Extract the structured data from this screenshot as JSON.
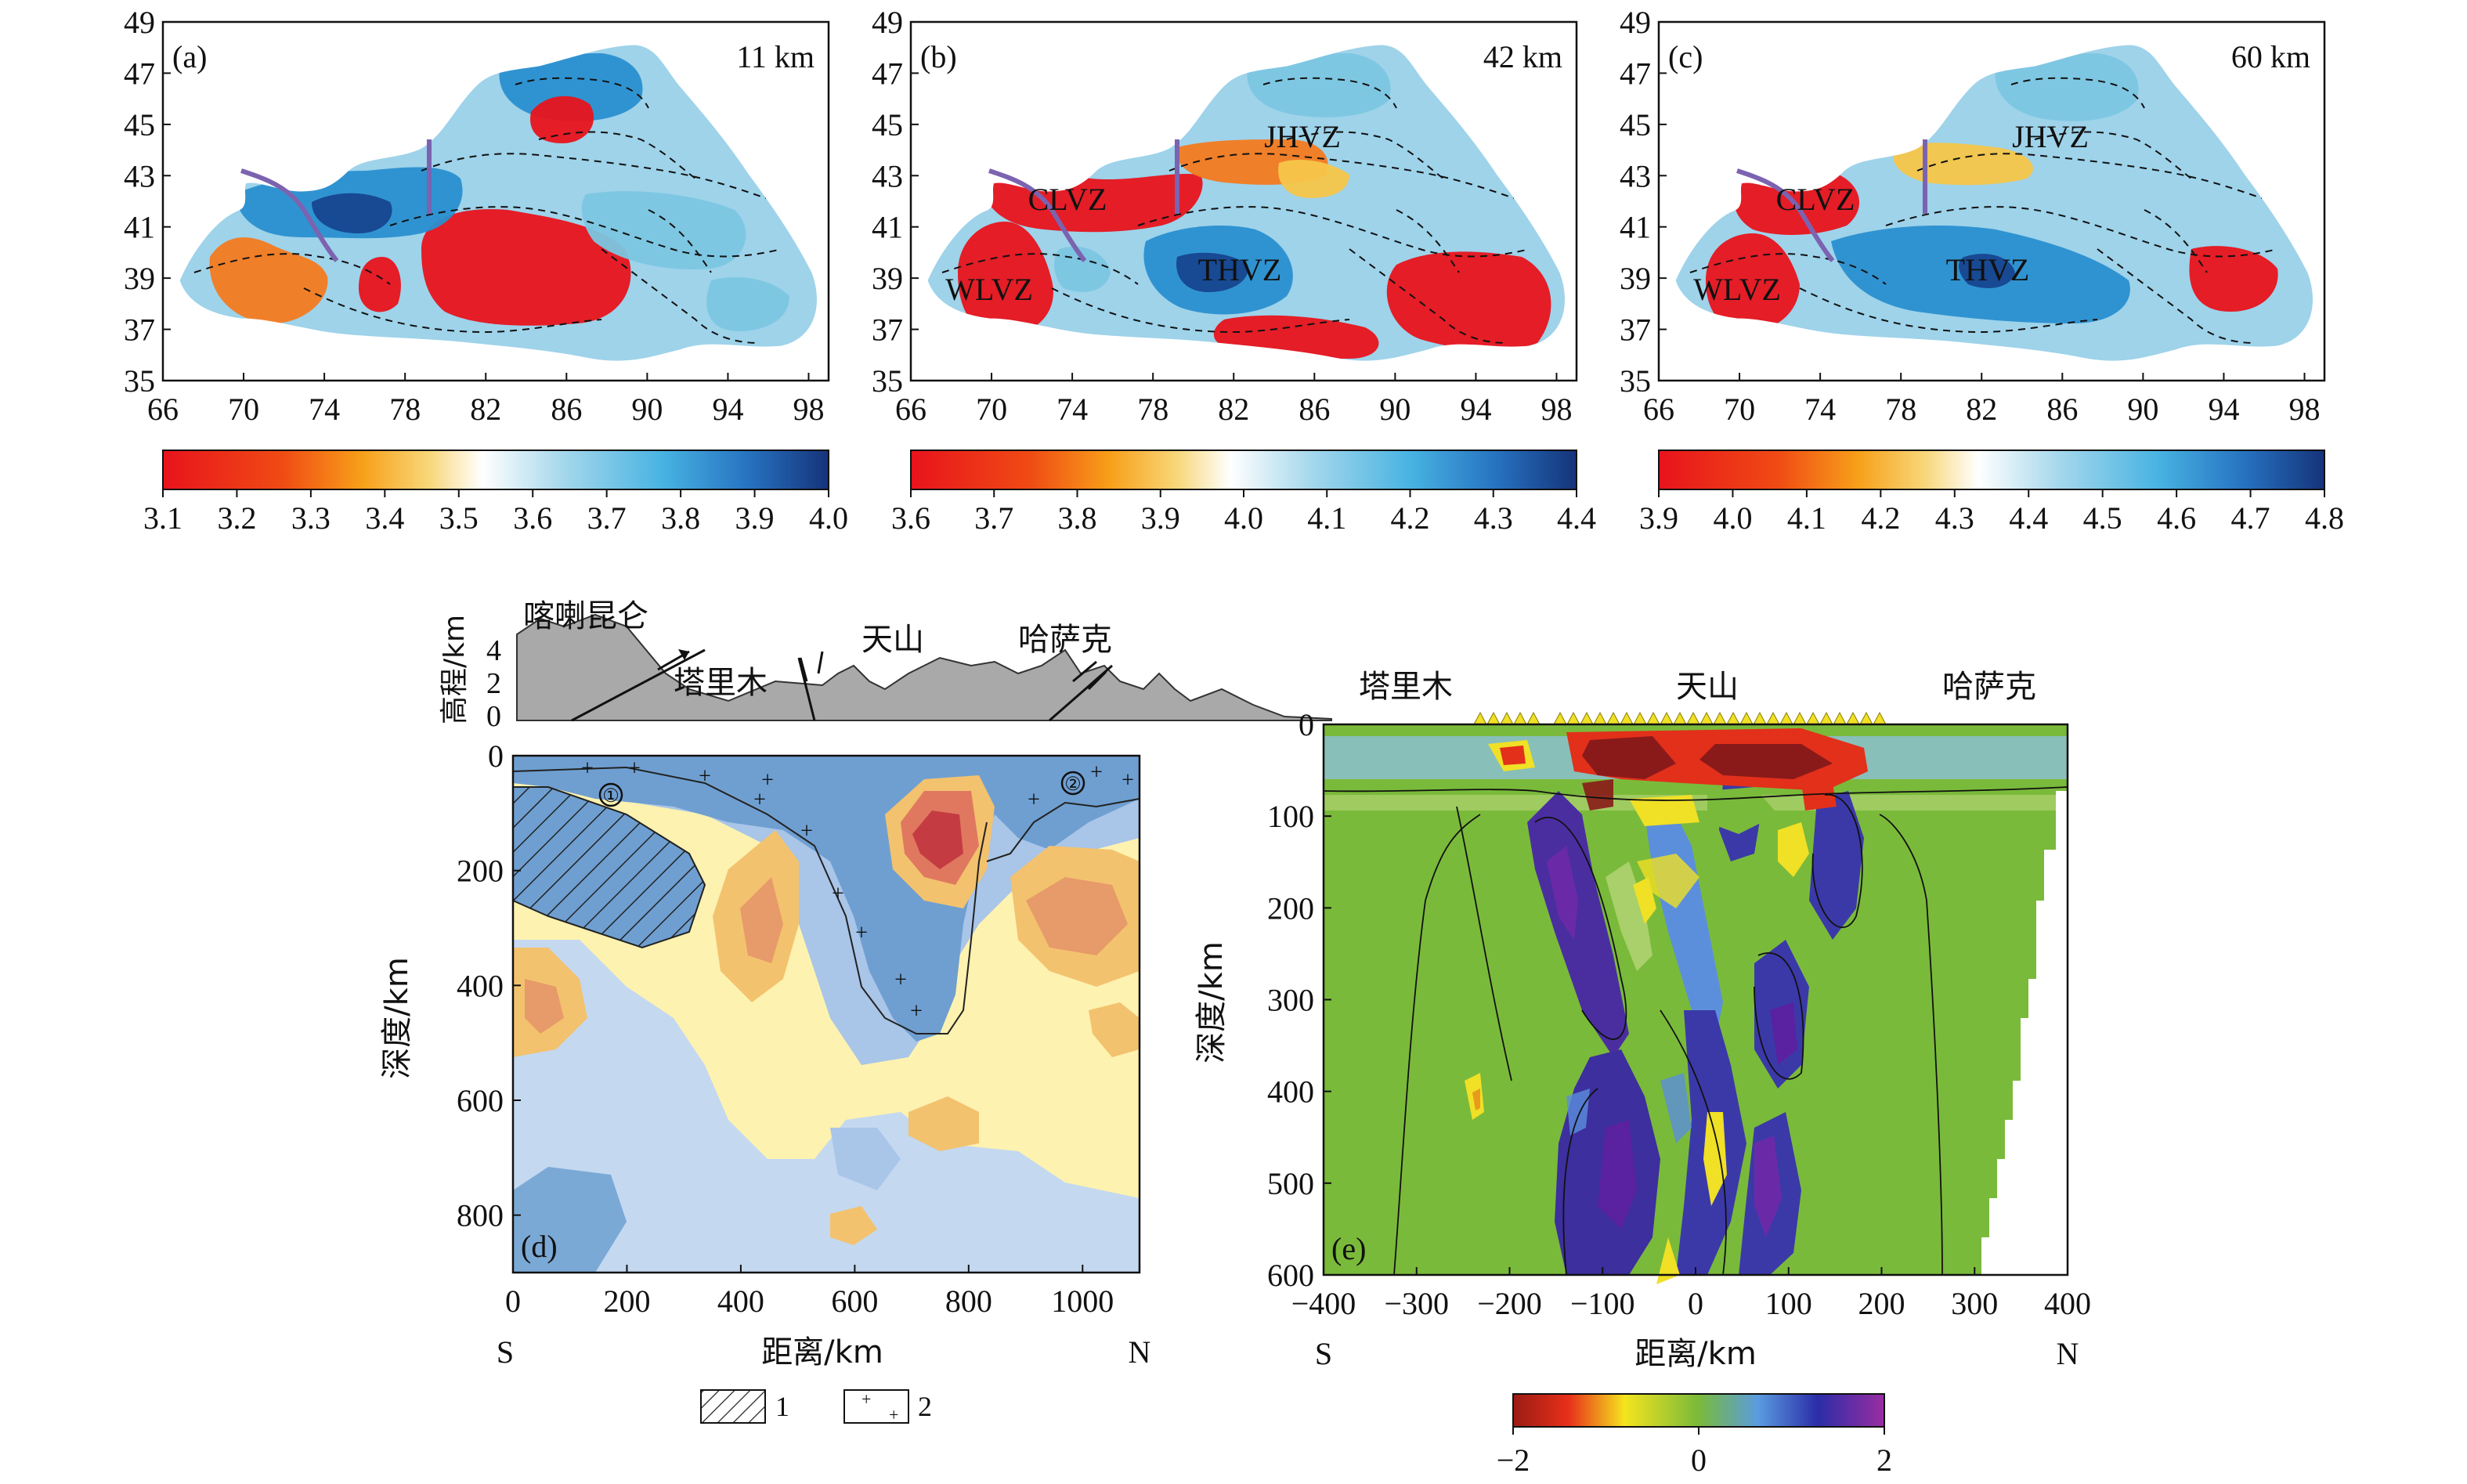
{
  "maps": [
    {
      "letter": "(a)",
      "depth": "11 km",
      "zones": [],
      "cbar": {
        "ticks": [
          "3.1",
          "3.2",
          "3.3",
          "3.4",
          "3.5",
          "3.6",
          "3.7",
          "3.8",
          "3.9",
          "4.0"
        ]
      }
    },
    {
      "letter": "(b)",
      "depth": "42 km",
      "zones": [
        "JHVZ",
        "CLVZ",
        "THVZ",
        "WLVZ"
      ],
      "cbar": {
        "ticks": [
          "3.6",
          "3.7",
          "3.8",
          "3.9",
          "4.0",
          "4.1",
          "4.2",
          "4.3",
          "4.4"
        ]
      }
    },
    {
      "letter": "(c)",
      "depth": "60 km",
      "zones": [
        "JHVZ",
        "CLVZ",
        "THVZ",
        "WLVZ"
      ],
      "cbar": {
        "ticks": [
          "3.9",
          "4.0",
          "4.1",
          "4.2",
          "4.3",
          "4.4",
          "4.5",
          "4.6",
          "4.7",
          "4.8"
        ]
      }
    }
  ],
  "map_axes": {
    "lat_ticks": [
      "49",
      "47",
      "45",
      "43",
      "41",
      "39",
      "37",
      "35"
    ],
    "lon_ticks": [
      "66",
      "70",
      "74",
      "78",
      "82",
      "86",
      "90",
      "94",
      "98"
    ]
  },
  "panel_d": {
    "letter": "(d)",
    "topo": {
      "ylabel": "高程/km",
      "yticks": [
        "4",
        "2",
        "0"
      ],
      "labels": [
        "喀喇昆仑",
        "塔里木",
        "天山",
        "哈萨克"
      ]
    },
    "ylabel": "深度/km",
    "yticks": [
      "0",
      "200",
      "400",
      "600",
      "800"
    ],
    "xticks": [
      "0",
      "200",
      "400",
      "600",
      "800",
      "1000"
    ],
    "xlabel": "距离/km",
    "south": "S",
    "north": "N",
    "markers": [
      "①",
      "②"
    ],
    "legend": [
      {
        "key": "1"
      },
      {
        "key": "2"
      }
    ]
  },
  "panel_e": {
    "letter": "(e)",
    "labels": [
      "塔里木",
      "天山",
      "哈萨克"
    ],
    "ylabel": "深度/km",
    "yticks": [
      "0",
      "100",
      "200",
      "300",
      "400",
      "500",
      "600"
    ],
    "xticks": [
      "−400",
      "−300",
      "−200",
      "−100",
      "0",
      "100",
      "200",
      "300",
      "400"
    ],
    "xlabel": "距离/km",
    "south": "S",
    "north": "N",
    "cbar_ticks": [
      "−2",
      "0",
      "2"
    ]
  },
  "colors": {
    "slow": "#e8131c",
    "orange": "#f47a20",
    "yellow": "#f6c64a",
    "white": "#ffffff",
    "light_blue": "#7cc6e2",
    "blue": "#2a8fd0",
    "dark_blue": "#17458f",
    "e_green": "#7aba3a",
    "e_purple": "#4a1a8a",
    "e_red": "#b51d1d"
  }
}
